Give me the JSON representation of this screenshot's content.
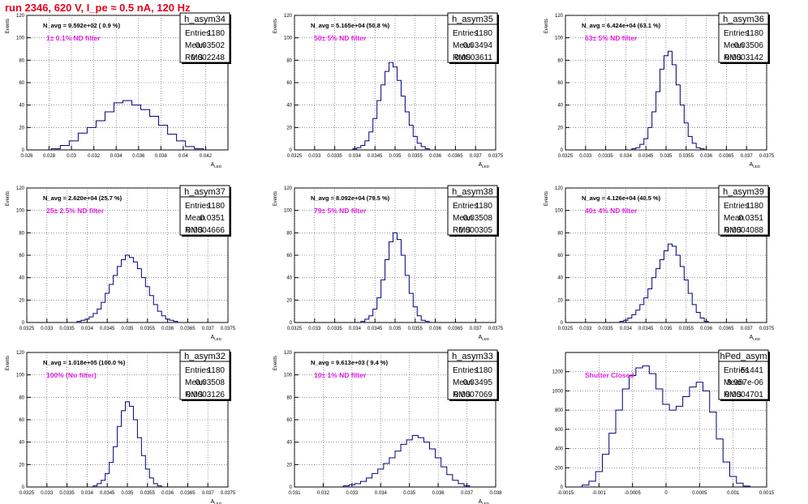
{
  "page_title": "run 2346,   620 V, I_pe ≈ 0.5 nA, 120 Hz",
  "chart_data": [
    {
      "type": "bar",
      "name": "h_asym34",
      "ylabel": "Events",
      "xlabel": "A_LED",
      "note_text": "N_avg = 9.592e+02 ( 0.9 %)",
      "filter_text": "1± 0.1% ND filter",
      "stats": [
        [
          "Entries",
          "1180"
        ],
        [
          "Mean",
          "0.03502"
        ],
        [
          "RMS",
          "0.002248"
        ]
      ],
      "xlim": [
        0.026,
        0.044
      ],
      "ylim": [
        0,
        120
      ],
      "xticks": [
        "0.026",
        "0.028",
        "0.03",
        "0.032",
        "0.034",
        "0.036",
        "0.038",
        "0.04",
        "0.042"
      ],
      "yticks": [
        "0",
        "20",
        "40",
        "60",
        "80",
        "100",
        "120"
      ],
      "x": [
        0.0286,
        0.0294,
        0.0302,
        0.031,
        0.0318,
        0.0326,
        0.0334,
        0.0342,
        0.035,
        0.0358,
        0.0366,
        0.0374,
        0.0382,
        0.039,
        0.0398,
        0.0406,
        0.0414
      ],
      "values": [
        1,
        4,
        8,
        15,
        20,
        26,
        34,
        42,
        44,
        40,
        36,
        30,
        22,
        14,
        8,
        3,
        1
      ]
    },
    {
      "type": "bar",
      "name": "h_asym35",
      "ylabel": "Events",
      "xlabel": "A_LED",
      "note_text": "N_avg = 5.165e+04 (50.8 %)",
      "filter_text": "50± 5% ND filter",
      "stats": [
        [
          "Entries",
          "1180"
        ],
        [
          "Mean",
          "0.03494"
        ],
        [
          "RMS",
          "0.0003611"
        ]
      ],
      "xlim": [
        0.0325,
        0.0375
      ],
      "ylim": [
        0,
        120
      ],
      "xticks": [
        "0.0325",
        "0.033",
        "0.0335",
        "0.034",
        "0.0345",
        "0.035",
        "0.0355",
        "0.036",
        "0.0365",
        "0.037",
        "0.0375"
      ],
      "yticks": [
        "0",
        "20",
        "40",
        "60",
        "80",
        "100",
        "120"
      ],
      "x": [
        0.034,
        0.0341,
        0.0342,
        0.0343,
        0.0344,
        0.0345,
        0.0346,
        0.0347,
        0.0348,
        0.0349,
        0.035,
        0.0351,
        0.0352,
        0.0353,
        0.0354,
        0.0355,
        0.0356,
        0.0357,
        0.0358
      ],
      "values": [
        1,
        2,
        4,
        8,
        16,
        28,
        44,
        58,
        70,
        78,
        74,
        62,
        48,
        34,
        22,
        12,
        6,
        3,
        1
      ]
    },
    {
      "type": "bar",
      "name": "h_asym36",
      "ylabel": "Events",
      "xlabel": "A_LED",
      "note_text": "N_avg = 6.424e+04 (63.1 %)",
      "filter_text": "63± 5% ND filter",
      "stats": [
        [
          "Entries",
          "1180"
        ],
        [
          "Mean",
          "0.03506"
        ],
        [
          "RMS",
          "0.0003142"
        ]
      ],
      "xlim": [
        0.0325,
        0.0375
      ],
      "ylim": [
        0,
        120
      ],
      "xticks": [
        "0.0325",
        "0.033",
        "0.0335",
        "0.034",
        "0.0345",
        "0.035",
        "0.0355",
        "0.036",
        "0.0365",
        "0.037",
        "0.0375"
      ],
      "yticks": [
        "0",
        "20",
        "40",
        "60",
        "80",
        "100",
        "120"
      ],
      "x": [
        0.0342,
        0.0343,
        0.0344,
        0.0345,
        0.0346,
        0.0347,
        0.0348,
        0.0349,
        0.035,
        0.0351,
        0.0352,
        0.0353,
        0.0354,
        0.0355,
        0.0356,
        0.0357,
        0.0358,
        0.0359
      ],
      "values": [
        1,
        2,
        5,
        10,
        20,
        34,
        52,
        72,
        84,
        88,
        76,
        58,
        40,
        24,
        12,
        6,
        2,
        1
      ]
    },
    {
      "type": "bar",
      "name": "h_asym37",
      "ylabel": "Events",
      "xlabel": "A_LED",
      "note_text": "N_avg = 2.620e+04 (25.7 %)",
      "filter_text": "25± 2.5% ND filter",
      "stats": [
        [
          "Entries",
          "1180"
        ],
        [
          "Mean",
          "0.0351"
        ],
        [
          "RMS",
          "0.0004666"
        ]
      ],
      "xlim": [
        0.0325,
        0.0375
      ],
      "ylim": [
        0,
        120
      ],
      "xticks": [
        "0.0325",
        "0.033",
        "0.0335",
        "0.034",
        "0.0345",
        "0.035",
        "0.0355",
        "0.036",
        "0.0365",
        "0.037",
        "0.0375"
      ],
      "yticks": [
        "0",
        "20",
        "40",
        "60",
        "80",
        "100",
        "120"
      ],
      "x": [
        0.0338,
        0.0339,
        0.034,
        0.0341,
        0.0342,
        0.0343,
        0.0344,
        0.0345,
        0.0346,
        0.0347,
        0.0348,
        0.0349,
        0.035,
        0.0351,
        0.0352,
        0.0353,
        0.0354,
        0.0355,
        0.0356,
        0.0357,
        0.0358,
        0.0359,
        0.036,
        0.0361,
        0.0362
      ],
      "values": [
        1,
        2,
        3,
        5,
        8,
        12,
        18,
        26,
        34,
        42,
        50,
        56,
        60,
        58,
        54,
        48,
        40,
        32,
        24,
        16,
        10,
        6,
        3,
        2,
        1
      ]
    },
    {
      "type": "bar",
      "name": "h_asym38",
      "ylabel": "Events",
      "xlabel": "A_LED",
      "note_text": "N_avg = 8.092e+04 (79.5 %)",
      "filter_text": "79± 5% ND filter",
      "stats": [
        [
          "Entries",
          "1180"
        ],
        [
          "Mean",
          "0.03508"
        ],
        [
          "RMS",
          "0.000305"
        ]
      ],
      "xlim": [
        0.0325,
        0.0375
      ],
      "ylim": [
        0,
        120
      ],
      "xticks": [
        "0.0325",
        "0.033",
        "0.0335",
        "0.034",
        "0.0345",
        "0.035",
        "0.0355",
        "0.036",
        "0.0365",
        "0.037",
        "0.0375"
      ],
      "yticks": [
        "0",
        "20",
        "40",
        "60",
        "80",
        "100",
        "120"
      ],
      "x": [
        0.0342,
        0.0343,
        0.0344,
        0.0345,
        0.0346,
        0.0347,
        0.0348,
        0.0349,
        0.035,
        0.0351,
        0.0352,
        0.0353,
        0.0354,
        0.0355,
        0.0356,
        0.0357,
        0.0358
      ],
      "values": [
        1,
        3,
        6,
        12,
        22,
        38,
        56,
        72,
        80,
        74,
        60,
        42,
        26,
        14,
        6,
        2,
        1
      ]
    },
    {
      "type": "bar",
      "name": "h_asym39",
      "ylabel": "Events",
      "xlabel": "A_LED",
      "note_text": "N_avg = 4.126e+04 (40.5 %)",
      "filter_text": "40± 4% ND filter",
      "stats": [
        [
          "Entries",
          "1180"
        ],
        [
          "Mean",
          "0.0351"
        ],
        [
          "RMS",
          "0.0004088"
        ]
      ],
      "xlim": [
        0.0325,
        0.0375
      ],
      "ylim": [
        0,
        120
      ],
      "xticks": [
        "0.0325",
        "0.033",
        "0.0335",
        "0.034",
        "0.0345",
        "0.035",
        "0.0355",
        "0.036",
        "0.0365",
        "0.037",
        "0.0375"
      ],
      "yticks": [
        "0",
        "20",
        "40",
        "60",
        "80",
        "100",
        "120"
      ],
      "x": [
        0.0339,
        0.034,
        0.0341,
        0.0342,
        0.0343,
        0.0344,
        0.0345,
        0.0346,
        0.0347,
        0.0348,
        0.0349,
        0.035,
        0.0351,
        0.0352,
        0.0353,
        0.0354,
        0.0355,
        0.0356,
        0.0357,
        0.0358,
        0.0359,
        0.036
      ],
      "values": [
        1,
        2,
        4,
        7,
        11,
        16,
        22,
        30,
        40,
        48,
        56,
        64,
        70,
        68,
        60,
        50,
        38,
        26,
        16,
        9,
        4,
        1
      ]
    },
    {
      "type": "bar",
      "name": "h_asym32",
      "ylabel": "Events",
      "xlabel": "A_LED",
      "note_text": "N_avg = 1.018e+05 (100.0 %)",
      "filter_text": "100% (No filter)",
      "stats": [
        [
          "Entries",
          "1180"
        ],
        [
          "Mean",
          "0.03508"
        ],
        [
          "RMS",
          "0.0003126"
        ]
      ],
      "xlim": [
        0.0325,
        0.0375
      ],
      "ylim": [
        0,
        120
      ],
      "xticks": [
        "0.0325",
        "0.033",
        "0.0335",
        "0.034",
        "0.0345",
        "0.035",
        "0.0355",
        "0.036",
        "0.0365",
        "0.037",
        "0.0375"
      ],
      "yticks": [
        "0",
        "20",
        "40",
        "60",
        "80",
        "100",
        "120"
      ],
      "x": [
        0.0342,
        0.0343,
        0.0344,
        0.0345,
        0.0346,
        0.0347,
        0.0348,
        0.0349,
        0.035,
        0.0351,
        0.0352,
        0.0353,
        0.0354,
        0.0355,
        0.0356,
        0.0357,
        0.0358
      ],
      "values": [
        1,
        3,
        6,
        12,
        22,
        36,
        54,
        68,
        76,
        72,
        60,
        44,
        28,
        16,
        8,
        3,
        1
      ]
    },
    {
      "type": "bar",
      "name": "h_asym33",
      "ylabel": "Events",
      "xlabel": "A_LED",
      "note_text": "N_avg = 9.613e+03 ( 9.4 %)",
      "filter_text": "10± 1% ND filter",
      "stats": [
        [
          "Entries",
          "1180"
        ],
        [
          "Mean",
          "0.03495"
        ],
        [
          "RMS",
          "0.0007069"
        ]
      ],
      "xlim": [
        0.031,
        0.038
      ],
      "ylim": [
        0,
        120
      ],
      "xticks": [
        "0.031",
        "0.032",
        "0.033",
        "0.034",
        "0.035",
        "0.036",
        "0.037",
        "0.038"
      ],
      "yticks": [
        "0",
        "20",
        "40",
        "60",
        "80",
        "100",
        "120"
      ],
      "x": [
        0.0328,
        0.033,
        0.0332,
        0.0334,
        0.0336,
        0.0338,
        0.034,
        0.0342,
        0.0344,
        0.0346,
        0.0348,
        0.035,
        0.0352,
        0.0354,
        0.0356,
        0.0358,
        0.036,
        0.0362,
        0.0364,
        0.0366,
        0.0368,
        0.037
      ],
      "values": [
        1,
        2,
        3,
        5,
        8,
        12,
        16,
        21,
        26,
        32,
        38,
        42,
        46,
        44,
        40,
        34,
        26,
        18,
        11,
        6,
        3,
        1
      ]
    },
    {
      "type": "bar",
      "name": "hPed_asym",
      "ylabel": "",
      "xlabel": "",
      "note_text": "",
      "filter_text": "Shutter Closed",
      "stats": [
        [
          "Entries",
          "51441"
        ],
        [
          "Mean",
          "8.957e-06"
        ],
        [
          "RMS",
          "0.0004701"
        ]
      ],
      "xlim": [
        -0.0015,
        0.0015
      ],
      "ylim": [
        0,
        1400
      ],
      "xticks": [
        "-0.0015",
        "-0.001",
        "-0.0005",
        "0",
        "0.0005",
        "0.001",
        "0.0015"
      ],
      "yticks": [
        "0",
        "200",
        "400",
        "600",
        "800",
        "1000",
        "1200"
      ],
      "x": [
        -0.0012,
        -0.0011,
        -0.001,
        -0.0009,
        -0.0008,
        -0.0007,
        -0.0006,
        -0.0005,
        -0.0004,
        -0.0003,
        -0.0002,
        -0.0001,
        0.0,
        0.0001,
        0.0002,
        0.0003,
        0.0004,
        0.0005,
        0.0006,
        0.0007,
        0.0008,
        0.0009,
        0.001,
        0.0011,
        0.0012
      ],
      "values": [
        20,
        60,
        160,
        340,
        560,
        800,
        1020,
        1160,
        1240,
        1260,
        1180,
        1020,
        860,
        800,
        840,
        940,
        1040,
        1090,
        1000,
        780,
        500,
        260,
        110,
        40,
        10
      ]
    }
  ]
}
